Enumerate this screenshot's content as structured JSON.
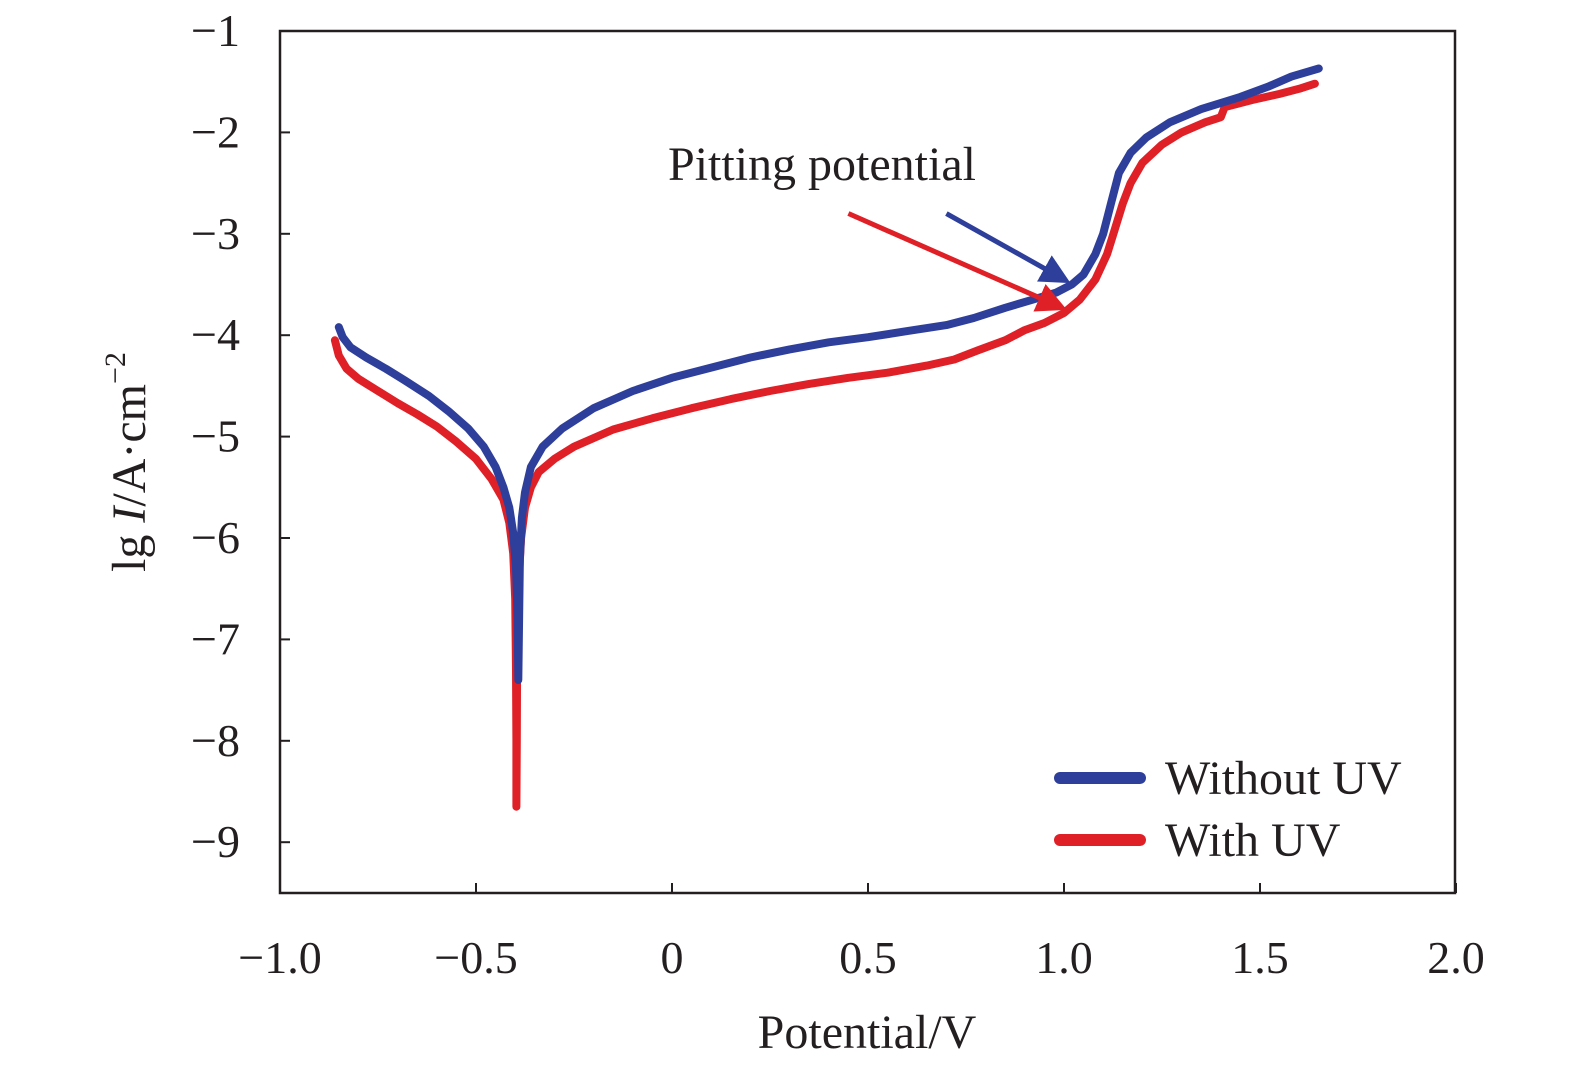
{
  "chart_data": {
    "type": "line",
    "title": "",
    "xlabel": "Potential/V",
    "ylabel": {
      "prefix": "lg ",
      "italic": "I",
      "unit": "/A·cm",
      "sup": "−2"
    },
    "xlim": [
      -1.0,
      2.0
    ],
    "ylim": [
      -9.5,
      -1.0
    ],
    "x_ticks": [
      -1.0,
      -0.5,
      0,
      0.5,
      1.0,
      1.5,
      2.0
    ],
    "x_tick_labels": [
      "−1.0",
      "−0.5",
      "0",
      "0.5",
      "1.0",
      "1.5",
      "2.0"
    ],
    "y_ticks": [
      -1,
      -2,
      -3,
      -4,
      -5,
      -6,
      -7,
      -8,
      -9
    ],
    "y_tick_labels": [
      "−1",
      "−2",
      "−3",
      "−4",
      "−5",
      "−6",
      "−7",
      "−8",
      "−9"
    ],
    "grid": false,
    "legend_position": "bottom-right",
    "series": [
      {
        "name": "Without UV",
        "color": "#2e3f9b",
        "points": [
          [
            -0.85,
            -3.92
          ],
          [
            -0.84,
            -4.02
          ],
          [
            -0.82,
            -4.12
          ],
          [
            -0.78,
            -4.22
          ],
          [
            -0.73,
            -4.33
          ],
          [
            -0.68,
            -4.45
          ],
          [
            -0.62,
            -4.6
          ],
          [
            -0.57,
            -4.75
          ],
          [
            -0.52,
            -4.92
          ],
          [
            -0.48,
            -5.1
          ],
          [
            -0.45,
            -5.3
          ],
          [
            -0.43,
            -5.5
          ],
          [
            -0.415,
            -5.7
          ],
          [
            -0.405,
            -5.95
          ],
          [
            -0.398,
            -6.3
          ],
          [
            -0.394,
            -6.8
          ],
          [
            -0.392,
            -7.4
          ],
          [
            -0.39,
            -6.8
          ],
          [
            -0.388,
            -6.2
          ],
          [
            -0.383,
            -5.8
          ],
          [
            -0.375,
            -5.55
          ],
          [
            -0.36,
            -5.3
          ],
          [
            -0.33,
            -5.1
          ],
          [
            -0.28,
            -4.92
          ],
          [
            -0.2,
            -4.72
          ],
          [
            -0.1,
            -4.55
          ],
          [
            0.0,
            -4.42
          ],
          [
            0.1,
            -4.32
          ],
          [
            0.2,
            -4.22
          ],
          [
            0.3,
            -4.14
          ],
          [
            0.4,
            -4.07
          ],
          [
            0.5,
            -4.02
          ],
          [
            0.6,
            -3.96
          ],
          [
            0.7,
            -3.9
          ],
          [
            0.77,
            -3.83
          ],
          [
            0.85,
            -3.73
          ],
          [
            0.92,
            -3.65
          ],
          [
            0.98,
            -3.58
          ],
          [
            1.02,
            -3.5
          ],
          [
            1.05,
            -3.4
          ],
          [
            1.08,
            -3.2
          ],
          [
            1.1,
            -3.0
          ],
          [
            1.12,
            -2.7
          ],
          [
            1.14,
            -2.4
          ],
          [
            1.17,
            -2.2
          ],
          [
            1.21,
            -2.05
          ],
          [
            1.27,
            -1.9
          ],
          [
            1.35,
            -1.77
          ],
          [
            1.45,
            -1.65
          ],
          [
            1.52,
            -1.55
          ],
          [
            1.58,
            -1.45
          ],
          [
            1.65,
            -1.37
          ]
        ]
      },
      {
        "name": "With UV",
        "color": "#e02027",
        "points": [
          [
            -0.86,
            -4.05
          ],
          [
            -0.85,
            -4.2
          ],
          [
            -0.83,
            -4.33
          ],
          [
            -0.8,
            -4.43
          ],
          [
            -0.75,
            -4.55
          ],
          [
            -0.7,
            -4.67
          ],
          [
            -0.65,
            -4.78
          ],
          [
            -0.6,
            -4.9
          ],
          [
            -0.55,
            -5.05
          ],
          [
            -0.5,
            -5.22
          ],
          [
            -0.46,
            -5.42
          ],
          [
            -0.43,
            -5.62
          ],
          [
            -0.415,
            -5.85
          ],
          [
            -0.405,
            -6.15
          ],
          [
            -0.4,
            -6.6
          ],
          [
            -0.398,
            -7.3
          ],
          [
            -0.397,
            -8.0
          ],
          [
            -0.397,
            -8.65
          ],
          [
            -0.396,
            -8.0
          ],
          [
            -0.395,
            -7.0
          ],
          [
            -0.392,
            -6.5
          ],
          [
            -0.385,
            -6.0
          ],
          [
            -0.375,
            -5.7
          ],
          [
            -0.36,
            -5.5
          ],
          [
            -0.34,
            -5.35
          ],
          [
            -0.3,
            -5.22
          ],
          [
            -0.25,
            -5.1
          ],
          [
            -0.15,
            -4.93
          ],
          [
            -0.05,
            -4.82
          ],
          [
            0.05,
            -4.72
          ],
          [
            0.15,
            -4.63
          ],
          [
            0.25,
            -4.55
          ],
          [
            0.35,
            -4.48
          ],
          [
            0.45,
            -4.42
          ],
          [
            0.55,
            -4.37
          ],
          [
            0.65,
            -4.3
          ],
          [
            0.72,
            -4.24
          ],
          [
            0.78,
            -4.15
          ],
          [
            0.85,
            -4.05
          ],
          [
            0.9,
            -3.95
          ],
          [
            0.95,
            -3.88
          ],
          [
            1.0,
            -3.78
          ],
          [
            1.04,
            -3.65
          ],
          [
            1.08,
            -3.45
          ],
          [
            1.11,
            -3.2
          ],
          [
            1.13,
            -2.95
          ],
          [
            1.15,
            -2.7
          ],
          [
            1.17,
            -2.5
          ],
          [
            1.2,
            -2.3
          ],
          [
            1.25,
            -2.12
          ],
          [
            1.3,
            -2.0
          ],
          [
            1.36,
            -1.9
          ],
          [
            1.4,
            -1.85
          ],
          [
            1.41,
            -1.75
          ],
          [
            1.48,
            -1.68
          ],
          [
            1.55,
            -1.62
          ],
          [
            1.6,
            -1.57
          ],
          [
            1.64,
            -1.52
          ]
        ]
      }
    ],
    "annotations": [
      {
        "text": "Pitting potential",
        "arrows": [
          {
            "color": "#2e3f9b",
            "from": [
              0.7,
              -2.8
            ],
            "to": [
              1.0,
              -3.45
            ]
          },
          {
            "color": "#e02027",
            "from": [
              0.45,
              -2.8
            ],
            "to": [
              0.99,
              -3.72
            ]
          }
        ]
      }
    ]
  }
}
